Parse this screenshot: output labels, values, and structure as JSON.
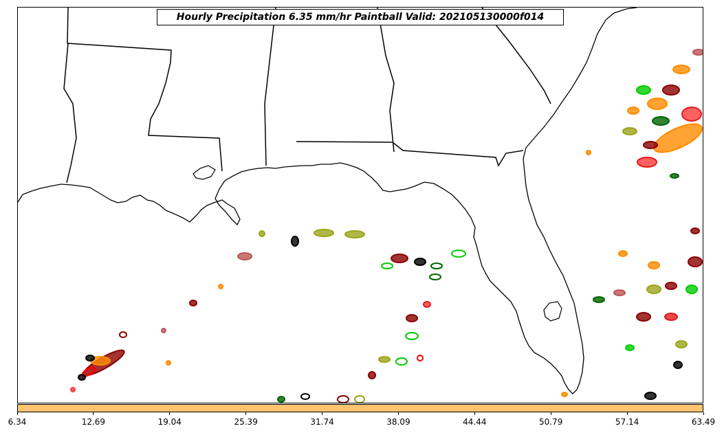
{
  "title": "Hourly Precipitation 6.35 mm/hr Paintball Valid: 202105130000f014",
  "colors": {
    "colorbar_fill": "#ffc470",
    "coastline": "#000000",
    "ensemble_members": [
      "#e31a1c",
      "#ff8c00",
      "#8b0000",
      "#000000",
      "#006400",
      "#00cc00",
      "#9aa51a",
      "#ff3a3a",
      "#bb5555"
    ]
  },
  "colorbar": {
    "ticks": [
      "6.34",
      "12.69",
      "19.04",
      "25.39",
      "31.74",
      "38.09",
      "44.44",
      "50.79",
      "57.14",
      "63.49"
    ]
  },
  "map": {
    "region": "Gulf of Mexico / Southeast US",
    "features": [
      "state borders",
      "coastlines",
      "precipitation paintball blobs"
    ]
  }
}
